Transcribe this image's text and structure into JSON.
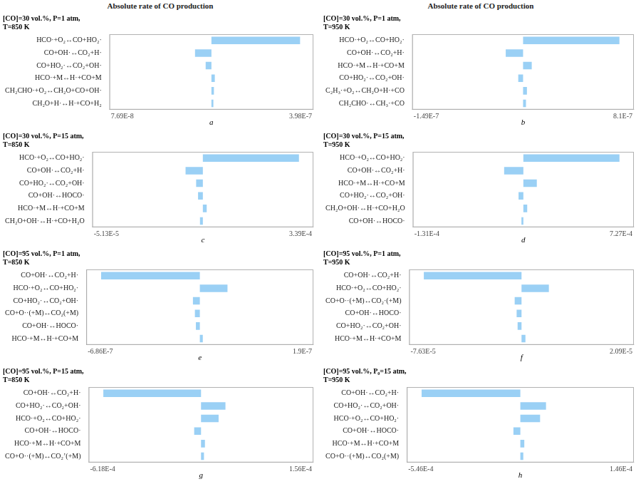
{
  "chart_data": [
    {
      "type": "bar",
      "orientation": "horizontal",
      "subtitle": "Absolute rate of CO production",
      "title": "[CO]=30 vol.%, P=1 atm,\nT=850 K",
      "xlabel": "a",
      "categories": [
        "HCO·+O₂↔CO+HO₂·",
        "CO+OH·↔CO₂+H·",
        "CO+HO₂·↔CO₂+OH·",
        "HCO·+M↔H·+CO+M",
        "CH₂CHO·+O₂↔CH₂O+CO+OH·",
        "CH₂O+H·↔H·+CO+H₂"
      ],
      "values": [
        1.0,
        -0.185,
        -0.065,
        0.038,
        0.028,
        0.022
      ],
      "xlim": [
        -1.15,
        1.15
      ],
      "annotations": [
        "7.69E-8",
        "3.98E-7"
      ],
      "grid": false,
      "tick_labels": "y"
    },
    {
      "type": "bar",
      "orientation": "horizontal",
      "subtitle": "Absolute rate of CO production",
      "title": "[CO]=30 vol.%, P=1 atm,\nT=950 K",
      "xlabel": "b",
      "categories": [
        "HCO·+O₂↔CO+HO₂·",
        "CO+OH·↔CO₂+H·",
        "HCO·+M↔H·+CO+M",
        "CO+HO₂·↔CO₂+OH·",
        "C₂H₃·+O₂↔CH₂O+H·+CO",
        "CH₂CHO·↔CH₃·+CO"
      ],
      "values": [
        1.0,
        -0.18,
        0.09,
        -0.05,
        0.04,
        0.03
      ],
      "xlim": [
        -1.15,
        1.15
      ],
      "annotations": [
        "-1.49E-7",
        "8.1E-7"
      ],
      "grid": false,
      "tick_labels": "y"
    },
    {
      "type": "bar",
      "orientation": "horizontal",
      "title": "[CO]=30 vol.%, P=15 atm,\nT=850 K",
      "xlabel": "c",
      "categories": [
        "HCO·+O₂↔CO+HO₂·",
        "CO+OH·↔CO₂+H·",
        "CO+HO₂·↔CO₂+OH·",
        "CO+OH·↔HOCO·",
        "HCO·+M↔H·+CO+M",
        "CH₂O+OH·↔H·+CO+H₂O"
      ],
      "values": [
        1.0,
        -0.18,
        -0.07,
        -0.05,
        0.04,
        -0.03
      ],
      "xlim": [
        -1.15,
        1.15
      ],
      "annotations": [
        "-5.13E-5",
        "3.39E-4"
      ],
      "grid": false,
      "tick_labels": "y"
    },
    {
      "type": "bar",
      "orientation": "horizontal",
      "title": "[CO]=30 vol.%, P=15 atm,\nT=950 K",
      "xlabel": "d",
      "categories": [
        "HCO·+O₂↔CO+HO₂·",
        "CO+OH·↔CO₂+H·",
        "HCO·+M↔H·+CO+M",
        "CO+HO₂·↔CO₂+OH·",
        "CH₂O+OH·↔H·+CO+H₂O",
        "CO+OH·↔HOCO·"
      ],
      "values": [
        1.0,
        -0.2,
        0.14,
        -0.05,
        0.04,
        -0.02
      ],
      "xlim": [
        -1.15,
        1.15
      ],
      "annotations": [
        "-1.31E-4",
        "7.27E-4"
      ],
      "grid": false,
      "tick_labels": "y"
    },
    {
      "type": "bar",
      "orientation": "horizontal",
      "title": "[CO]=95 vol.%, P=1 atm,\nT=850 K",
      "xlabel": "e",
      "categories": [
        "CO+OH·↔CO₂+H·",
        "HCO·+O₂↔CO+HO₂·",
        "CO+HO₂·↔CO₂+OH·",
        "CO+O··(+M)↔CO₂(+M)",
        "CO+OH·↔HOCO·",
        "HCO·+M↔H·+CO+M"
      ],
      "values": [
        -1.0,
        0.28,
        -0.07,
        -0.05,
        -0.04,
        0.03
      ],
      "xlim": [
        -1.15,
        1.15
      ],
      "annotations": [
        "-6.86E-7",
        "1.9E-7"
      ],
      "grid": false,
      "tick_labels": "y"
    },
    {
      "type": "bar",
      "orientation": "horizontal",
      "title": "[CO]=95 vol.%, P=1 atm,\nT=950 K",
      "xlabel": "f",
      "categories": [
        "CO+OH·↔CO₂+H·",
        "HCO·+O₂↔CO+HO₂·",
        "CO+O··(+M)↔CO₂·(+M)",
        "CO+OH·↔HOCO·",
        "CO+HO₂·↔CO₂+OH·",
        "HCO·+M↔H·+CO+M"
      ],
      "values": [
        -1.0,
        0.28,
        -0.07,
        -0.05,
        -0.04,
        0.04
      ],
      "xlim": [
        -1.15,
        1.15
      ],
      "annotations": [
        "-7.63E-5",
        "2.09E-5"
      ],
      "grid": false,
      "tick_labels": "y"
    },
    {
      "type": "bar",
      "orientation": "horizontal",
      "title": "[CO]=95 vol.%, P=15 atm,\nT=850 K",
      "xlabel": "g",
      "categories": [
        "CO+OH·↔CO₂+H·",
        "CO+HO₂·↔CO₂+OH·",
        "HCO·+O₂↔CO+HO₂·",
        "CO+OH·↔HOCO·",
        "HCO·+M↔H·+CO+M",
        "CO+O··(+M)↔CO₂’(+M)"
      ],
      "values": [
        -1.0,
        0.25,
        0.18,
        -0.07,
        0.04,
        0.03
      ],
      "xlim": [
        -1.15,
        1.15
      ],
      "annotations": [
        "-6.18E-4",
        "1.56E-4"
      ],
      "grid": false,
      "tick_labels": "y"
    },
    {
      "type": "bar",
      "orientation": "horizontal",
      "title": "[CO]=95 vol.%, P₀=15 atm,\nT=950 K",
      "xlabel": "h",
      "categories": [
        "CO+OH·↔CO₂+H·",
        "CO+HO₂·↔CO₂+OH·",
        "HCO·+O₂↔CO+HO₂·",
        "CO+OH·↔HOCO·",
        "HCO·+M↔H·+CO+M",
        "CO+O··(+M)↔CO₂(+M)"
      ],
      "values": [
        -1.0,
        0.26,
        0.2,
        -0.07,
        0.04,
        0.03
      ],
      "xlim": [
        -1.15,
        1.15
      ],
      "annotations": [
        "-5.46E-4",
        "1.46E-4"
      ],
      "grid": false,
      "tick_labels": "y"
    }
  ]
}
